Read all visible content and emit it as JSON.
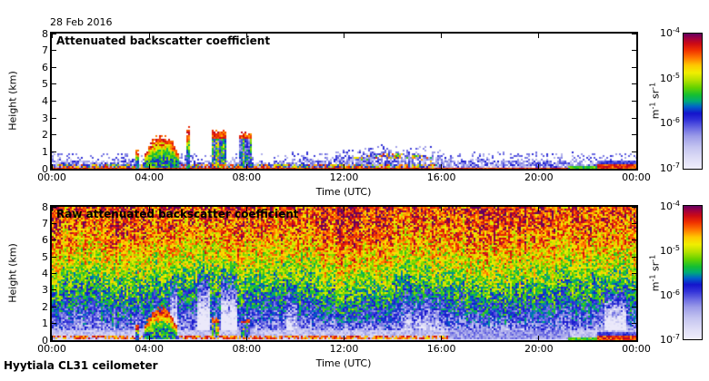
{
  "figure": {
    "date_label": "28 Feb 2016",
    "footer_label": "Hyytiala CL31 ceilometer",
    "background": "#ffffff"
  },
  "panels": [
    {
      "title": "Attenuated backscatter coefficient",
      "xlabel": "Time (UTC)",
      "ylabel": "Height (km)",
      "x_ticks": [
        "00:00",
        "04:00",
        "08:00",
        "12:00",
        "16:00",
        "20:00",
        "00:00"
      ],
      "y_ticks": [
        "0",
        "1",
        "2",
        "3",
        "4",
        "5",
        "6",
        "7",
        "8"
      ]
    },
    {
      "title": "Raw attenuated backscatter coefficient",
      "xlabel": "Time (UTC)",
      "ylabel": "Height (km)",
      "x_ticks": [
        "00:00",
        "04:00",
        "08:00",
        "12:00",
        "16:00",
        "20:00",
        "00:00"
      ],
      "y_ticks": [
        "0",
        "1",
        "2",
        "3",
        "4",
        "5",
        "6",
        "7",
        "8"
      ]
    }
  ],
  "colorbar": {
    "ticks": [
      {
        "base": "10",
        "exp": "-4"
      },
      {
        "base": "10",
        "exp": "-5"
      },
      {
        "base": "10",
        "exp": "-6"
      },
      {
        "base": "10",
        "exp": "-7"
      }
    ],
    "unit_parts": [
      {
        "text": "m"
      },
      {
        "text": "-1",
        "sup": true
      },
      {
        "text": " sr"
      },
      {
        "text": "-1",
        "sup": true
      }
    ],
    "stops": [
      [
        0.0,
        "#efedfb"
      ],
      [
        0.08,
        "#dddcf6"
      ],
      [
        0.16,
        "#c4c4f0"
      ],
      [
        0.24,
        "#9c9ce8"
      ],
      [
        0.3,
        "#6a6ae2"
      ],
      [
        0.36,
        "#3232d8"
      ],
      [
        0.41,
        "#1414cc"
      ],
      [
        0.46,
        "#0064c8"
      ],
      [
        0.5,
        "#00aa78"
      ],
      [
        0.545,
        "#14be32"
      ],
      [
        0.6,
        "#64d200"
      ],
      [
        0.655,
        "#b4e100"
      ],
      [
        0.71,
        "#f0ee00"
      ],
      [
        0.765,
        "#ffc800"
      ],
      [
        0.82,
        "#ff7800"
      ],
      [
        0.875,
        "#f03200"
      ],
      [
        0.925,
        "#cd0a14"
      ],
      [
        0.965,
        "#a00040"
      ],
      [
        1.0,
        "#640060"
      ]
    ]
  },
  "chart_data": [
    {
      "type": "heatmap",
      "title": "Attenuated backscatter coefficient",
      "xlabel": "Time (UTC)",
      "ylabel": "Height (km)",
      "x_range_hours": [
        0,
        24
      ],
      "y_range_km": [
        0,
        8
      ],
      "x_ticks": [
        "00:00",
        "04:00",
        "08:00",
        "12:00",
        "16:00",
        "20:00",
        "00:00"
      ],
      "y_ticks": [
        0,
        1,
        2,
        3,
        4,
        5,
        6,
        7,
        8
      ],
      "value_scale": "log10 attenuated backscatter, 1e-7 to 1e-4 m-1 sr-1",
      "layer_top_profile_km": [
        [
          0,
          0.55
        ],
        [
          1,
          0.5
        ],
        [
          2,
          0.45
        ],
        [
          3,
          0.5
        ],
        [
          3.5,
          0.55
        ],
        [
          5.5,
          0.5
        ],
        [
          6,
          0.4
        ],
        [
          8.5,
          0.4
        ],
        [
          10,
          0.45
        ],
        [
          12,
          0.6
        ],
        [
          13,
          0.85
        ],
        [
          13.8,
          0.95
        ],
        [
          15,
          0.85
        ],
        [
          16,
          0.6
        ],
        [
          17,
          0.5
        ],
        [
          19,
          0.55
        ],
        [
          21,
          0.45
        ],
        [
          22.5,
          0.45
        ],
        [
          24,
          0.45
        ]
      ],
      "surface_strong_layer": {
        "t_hours": [
          0,
          15.8
        ],
        "top_km": 0.28
      },
      "midday_speckle": {
        "t_hours": [
          12.4,
          15.6
        ],
        "rel": 0.8
      },
      "features": [
        {
          "type": "spike",
          "t_hours": [
            3.45,
            3.62
          ],
          "top_km": 1.05
        },
        {
          "type": "plume",
          "t_hours": [
            3.75,
            5.3
          ],
          "top_km": 1.95
        },
        {
          "type": "spike",
          "t_hours": [
            5.5,
            5.68
          ],
          "top_km": 2.3
        },
        {
          "type": "column",
          "t_hours": [
            6.55,
            7.15
          ],
          "top_km": 2.25,
          "base_km": 0.25
        },
        {
          "type": "column",
          "t_hours": [
            7.7,
            8.2
          ],
          "top_km": 2.15,
          "base_km": 0.2
        },
        {
          "type": "green-band",
          "t_hours": [
            21.2,
            22.4
          ],
          "top_km": 0.18
        },
        {
          "type": "red-band",
          "t_hours": [
            22.4,
            24.0
          ],
          "top_km": 0.25
        }
      ]
    },
    {
      "type": "heatmap",
      "title": "Raw attenuated backscatter coefficient",
      "xlabel": "Time (UTC)",
      "ylabel": "Height (km)",
      "x_range_hours": [
        0,
        24
      ],
      "y_range_km": [
        0,
        8
      ],
      "x_ticks": [
        "00:00",
        "04:00",
        "08:00",
        "12:00",
        "16:00",
        "20:00",
        "00:00"
      ],
      "y_ticks": [
        0,
        1,
        2,
        3,
        4,
        5,
        6,
        7,
        8
      ],
      "value_scale": "log10 raw attenuated backscatter, 1e-7 to 1e-4 m-1 sr-1",
      "noise_profile": [
        [
          0,
          0.14
        ],
        [
          0.3,
          0.18
        ],
        [
          0.8,
          0.27
        ],
        [
          1.5,
          0.36
        ],
        [
          2,
          0.42
        ],
        [
          3,
          0.53
        ],
        [
          4,
          0.63
        ],
        [
          5,
          0.71
        ],
        [
          6,
          0.79
        ],
        [
          7,
          0.84
        ],
        [
          8,
          0.87
        ]
      ],
      "surface_strong_layer": {
        "t_hours": [
          0,
          16.3
        ],
        "km_range": [
          0.1,
          0.28
        ]
      },
      "white_columns": [
        {
          "t_hours": [
            4.85,
            5.15
          ],
          "km_range": [
            0.6,
            4.5
          ],
          "strength": 0.4
        },
        {
          "t_hours": [
            5.95,
            6.5
          ],
          "km_range": [
            0.4,
            5.0
          ],
          "strength": 0.5
        },
        {
          "t_hours": [
            6.95,
            7.6
          ],
          "km_range": [
            0.4,
            5.0
          ],
          "strength": 0.5
        },
        {
          "t_hours": [
            9.6,
            10.05
          ],
          "km_range": [
            0.4,
            4.0
          ],
          "strength": 0.22
        },
        {
          "t_hours": [
            14.4,
            16.0
          ],
          "km_range": [
            0.3,
            4.0
          ],
          "strength": 0.13
        },
        {
          "t_hours": [
            22.7,
            23.6
          ],
          "km_range": [
            0.35,
            3.5
          ],
          "strength": 0.38
        }
      ],
      "tinted_columns": [
        {
          "t_hours": [
            11.0,
            13.5
          ],
          "dv": 0.05
        },
        {
          "t_hours": [
            17.0,
            19.5
          ],
          "dv": 0.04
        },
        {
          "t_hours": [
            2.0,
            3.3
          ],
          "dv": 0.03
        }
      ],
      "features": [
        {
          "type": "spike",
          "t_hours": [
            3.45,
            3.6
          ],
          "top_km": 0.9
        },
        {
          "type": "plume",
          "t_hours": [
            3.75,
            5.2
          ],
          "top_km": 1.9
        },
        {
          "type": "column",
          "t_hours": [
            6.55,
            6.85
          ],
          "top_km": 1.35,
          "base_km": 0.2
        },
        {
          "type": "column",
          "t_hours": [
            7.8,
            8.1
          ],
          "top_km": 1.25,
          "base_km": 0.2
        },
        {
          "type": "green-band",
          "t_hours": [
            21.2,
            22.4
          ],
          "top_km": 0.2
        },
        {
          "type": "red-band",
          "t_hours": [
            22.4,
            24.0
          ],
          "top_km": 0.25
        }
      ]
    }
  ]
}
